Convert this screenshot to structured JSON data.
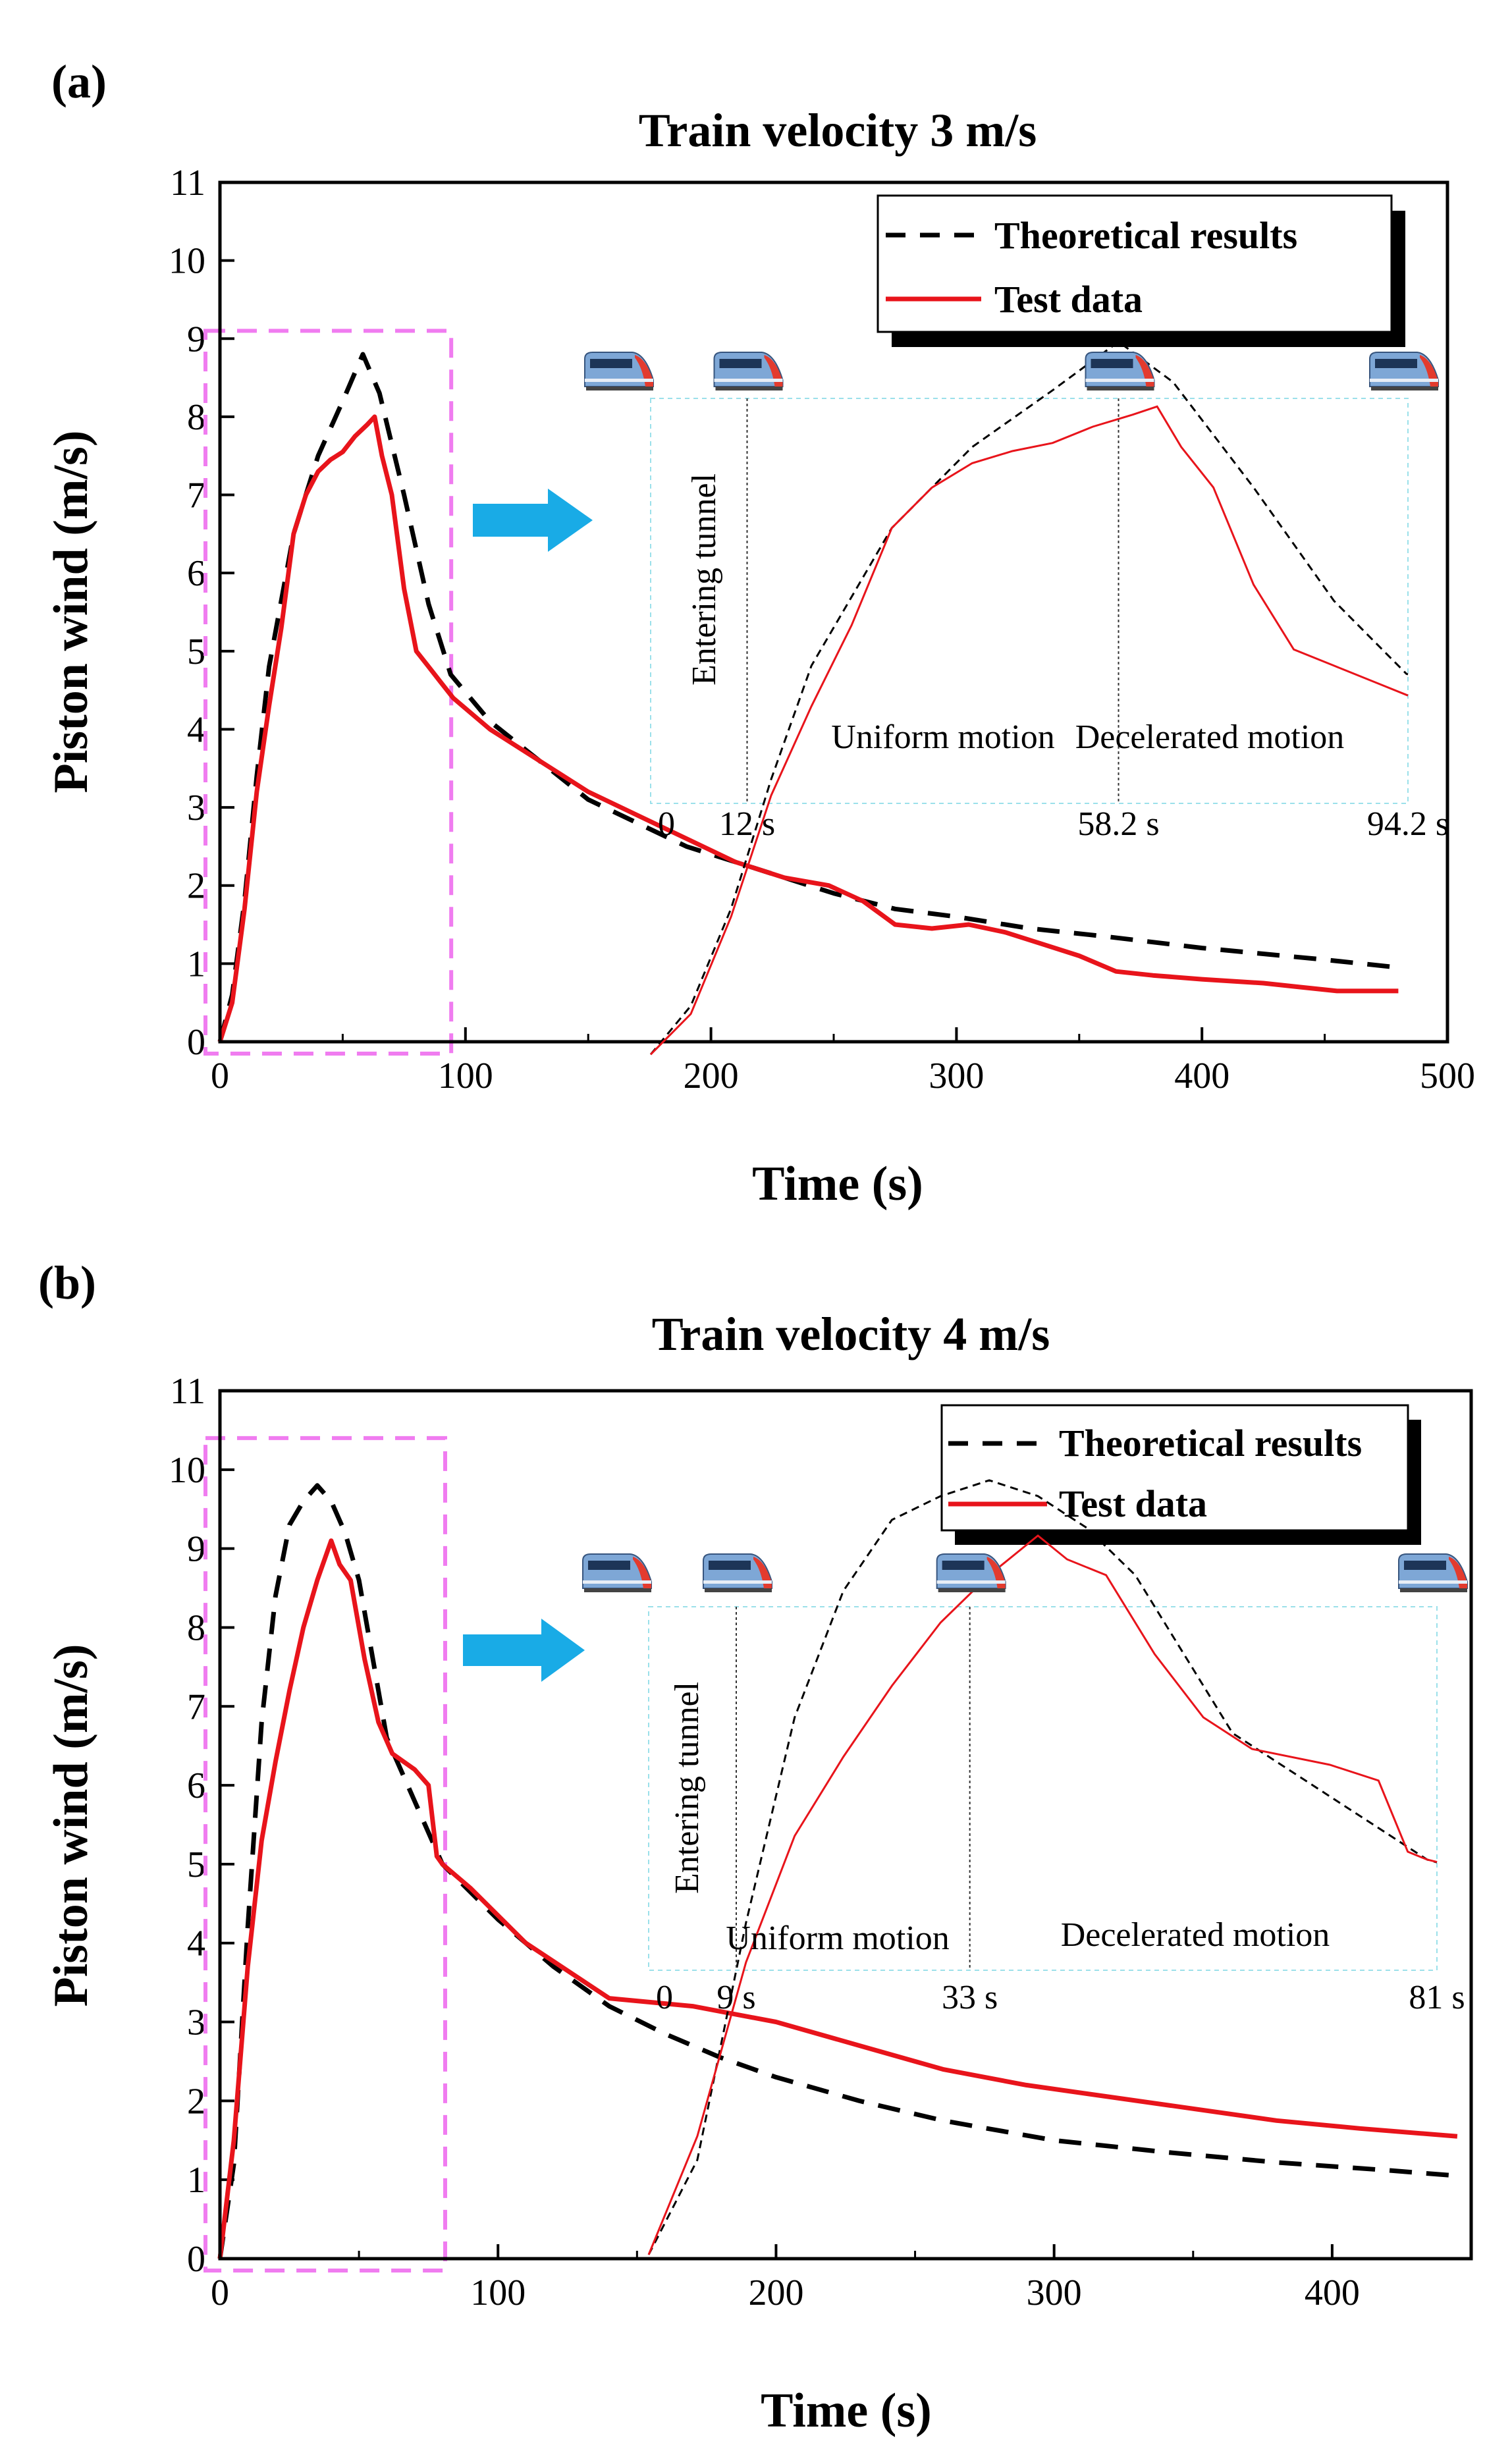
{
  "colors": {
    "theory": "#000000",
    "test": "#e8141b",
    "zoom_box": "#f07cf0",
    "inset_border": "#9be0ea",
    "arrow": "#19abe6",
    "train_body": "#7ea7d6",
    "train_nose": "#e33b2e"
  },
  "icons": [
    "train-icon",
    "arrow-right-icon"
  ],
  "chart_data": [
    {
      "type": "line",
      "panel_label": "(a)",
      "title": "Train velocity 3 m/s",
      "xlabel": "Time (s)",
      "ylabel": "Piston wind (m/s)",
      "xlim": [
        0,
        500
      ],
      "ylim": [
        0,
        11
      ],
      "xticks": [
        0,
        100,
        200,
        300,
        400,
        500
      ],
      "yticks": [
        0,
        1,
        2,
        3,
        4,
        5,
        6,
        7,
        8,
        9,
        10,
        11
      ],
      "legend": {
        "position": "top-right",
        "theory_label": "Theoretical results",
        "test_label": "Test data"
      },
      "zoom_box": {
        "x_range": [
          0,
          94.2
        ],
        "y_range": [
          0,
          9.1
        ]
      },
      "series": [
        {
          "name": "Theoretical results",
          "style": "dashed",
          "x": [
            0,
            5,
            10,
            15,
            20,
            30,
            40,
            50,
            58.2,
            65,
            75,
            85,
            94,
            110,
            130,
            150,
            170,
            190,
            210,
            230,
            250,
            275,
            300,
            330,
            360,
            400,
            450,
            480
          ],
          "y": [
            0,
            0.6,
            1.8,
            3.4,
            4.8,
            6.5,
            7.5,
            8.2,
            8.8,
            8.3,
            7.0,
            5.6,
            4.7,
            4.1,
            3.6,
            3.1,
            2.8,
            2.5,
            2.3,
            2.1,
            1.9,
            1.7,
            1.6,
            1.45,
            1.35,
            1.2,
            1.05,
            0.95
          ]
        },
        {
          "name": "Test data",
          "style": "solid",
          "x": [
            0,
            5,
            10,
            15,
            20,
            25,
            30,
            35,
            40,
            45,
            50,
            55,
            60,
            63,
            66,
            70,
            75,
            80,
            85,
            90,
            95,
            110,
            130,
            150,
            170,
            190,
            210,
            230,
            248,
            262,
            275,
            290,
            305,
            320,
            335,
            350,
            365,
            380,
            400,
            425,
            440,
            455,
            470,
            480
          ],
          "y": [
            0,
            0.5,
            1.7,
            3.2,
            4.3,
            5.3,
            6.5,
            7.0,
            7.3,
            7.45,
            7.55,
            7.75,
            7.9,
            8.0,
            7.5,
            7.0,
            5.8,
            5.0,
            4.8,
            4.6,
            4.4,
            4.0,
            3.6,
            3.2,
            2.9,
            2.6,
            2.3,
            2.1,
            2.0,
            1.8,
            1.5,
            1.45,
            1.5,
            1.4,
            1.25,
            1.1,
            0.9,
            0.85,
            0.8,
            0.75,
            0.7,
            0.65,
            0.65,
            0.65
          ]
        }
      ],
      "inset": {
        "tick_labels": [
          "0",
          "12 s",
          "58.2 s",
          "94.2 s"
        ],
        "tick_times": [
          0,
          12,
          58.2,
          94.2
        ],
        "entering_label": "Entering tunnel",
        "phase_labels": [
          "Uniform motion",
          "Decelerated  motion"
        ],
        "train_icon_times": [
          0,
          12,
          58.2,
          94.2
        ]
      }
    },
    {
      "type": "line",
      "panel_label": "(b)",
      "title": "Train velocity 4 m/s",
      "xlabel": "Time (s)",
      "ylabel": "Piston wind (m/s)",
      "xlim": [
        0,
        450
      ],
      "ylim": [
        0,
        11
      ],
      "xticks": [
        0,
        100,
        200,
        300,
        400
      ],
      "yticks": [
        0,
        1,
        2,
        3,
        4,
        5,
        6,
        7,
        8,
        9,
        10,
        11
      ],
      "legend": {
        "position": "top-right",
        "theory_label": "Theoretical results",
        "test_label": "Test data"
      },
      "zoom_box": {
        "x_range": [
          0,
          81
        ],
        "y_range": [
          0,
          10.4
        ]
      },
      "series": [
        {
          "name": "Theoretical results",
          "style": "dashed",
          "x": [
            0,
            5,
            10,
            15,
            20,
            25,
            30,
            35,
            40,
            45,
            50,
            55,
            60,
            70,
            80,
            100,
            120,
            140,
            160,
            180,
            200,
            230,
            260,
            300,
            340,
            380,
            420,
            445
          ],
          "y": [
            0,
            1.2,
            4.2,
            6.8,
            8.4,
            9.3,
            9.6,
            9.8,
            9.6,
            9.2,
            8.6,
            7.6,
            6.6,
            5.8,
            5.0,
            4.3,
            3.7,
            3.2,
            2.85,
            2.55,
            2.3,
            2.0,
            1.75,
            1.5,
            1.35,
            1.22,
            1.12,
            1.05
          ]
        },
        {
          "name": "Test data",
          "style": "solid",
          "x": [
            0,
            5,
            10,
            15,
            20,
            25,
            30,
            35,
            40,
            43,
            47,
            52,
            57,
            62,
            70,
            75,
            78,
            80,
            90,
            110,
            140,
            170,
            200,
            230,
            260,
            290,
            320,
            350,
            380,
            410,
            445
          ],
          "y": [
            0,
            1.5,
            3.7,
            5.3,
            6.3,
            7.2,
            8.0,
            8.6,
            9.1,
            8.8,
            8.6,
            7.6,
            6.8,
            6.4,
            6.2,
            6.0,
            5.1,
            5.0,
            4.7,
            4.0,
            3.3,
            3.2,
            3.0,
            2.7,
            2.4,
            2.2,
            2.05,
            1.9,
            1.75,
            1.65,
            1.55
          ]
        }
      ],
      "inset": {
        "tick_labels": [
          "0",
          "9 s",
          "33 s",
          "81 s"
        ],
        "tick_times": [
          0,
          9,
          33,
          81
        ],
        "entering_label": "Entering tunnel",
        "phase_labels": [
          "Uniform motion",
          "Decelerated  motion"
        ],
        "train_icon_times": [
          0,
          9,
          33,
          81
        ]
      }
    }
  ]
}
